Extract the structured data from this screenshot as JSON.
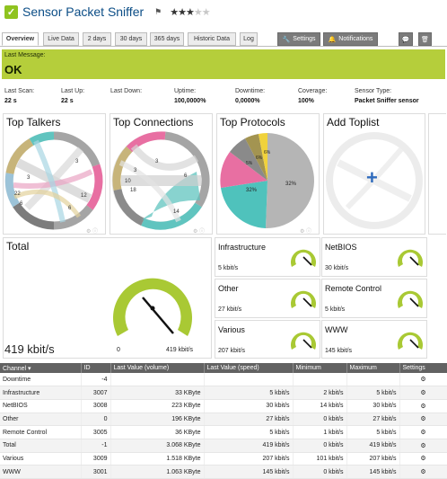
{
  "header": {
    "title": "Sensor Packet Sniffer",
    "flag_icon": "flag-icon",
    "stars": "★★★",
    "stars_off": "★★"
  },
  "tabs": [
    {
      "label": "Overview"
    },
    {
      "label": "Live Data"
    },
    {
      "label": "2 days"
    },
    {
      "label": "30 days"
    },
    {
      "label": "365 days"
    },
    {
      "label": "Historic Data"
    },
    {
      "label": "Log"
    },
    {
      "label": "Settings"
    },
    {
      "label": "Notifications"
    }
  ],
  "banner": {
    "label": "Last Message:",
    "value": "OK"
  },
  "stats": [
    {
      "k": "Last Scan:",
      "v": "22 s"
    },
    {
      "k": "Last Up:",
      "v": "22 s"
    },
    {
      "k": "Last Down:",
      "v": ""
    },
    {
      "k": "Uptime:",
      "v": "100,0000%"
    },
    {
      "k": "Downtime:",
      "v": "0,0000%"
    },
    {
      "k": "Coverage:",
      "v": "100%"
    },
    {
      "k": "Sensor Type:",
      "v": "Packet Sniffer sensor"
    }
  ],
  "panels": {
    "talkers": "Top Talkers",
    "connections": "Top Connections",
    "protocols": "Top Protocols",
    "toplist": "Add Toplist",
    "talker_labels": [
      "3",
      "3",
      "22",
      "6",
      "12",
      "6"
    ],
    "connection_labels": [
      "3",
      "3",
      "6",
      "10",
      "18",
      "14"
    ],
    "protocol_labels": [
      "32%",
      "32%",
      "5%",
      "6%",
      "6%"
    ]
  },
  "total": {
    "title": "Total",
    "value": "419 kbit/s",
    "min": "0",
    "max": "419 kbit/s",
    "gauge_fraction": 1
  },
  "gauges": [
    {
      "title": "Infrastructure",
      "value": "5 kbit/s",
      "fraction": 1
    },
    {
      "title": "NetBIOS",
      "value": "30 kbit/s",
      "fraction": 1
    },
    {
      "title": "Other",
      "value": "27 kbit/s",
      "fraction": 1
    },
    {
      "title": "Remote Control",
      "value": "5 kbit/s",
      "fraction": 1
    },
    {
      "title": "Various",
      "value": "207 kbit/s",
      "fraction": 1
    },
    {
      "title": "WWW",
      "value": "145 kbit/s",
      "fraction": 1
    }
  ],
  "table": {
    "headers": [
      "Channel",
      "ID",
      "Last Value (volume)",
      "Last Value (speed)",
      "Minimum",
      "Maximum",
      "Settings"
    ],
    "rows": [
      [
        "Downtime",
        "-4",
        "",
        "",
        "",
        "",
        ""
      ],
      [
        "Infrastructure",
        "3007",
        "33 KByte",
        "5 kbit/s",
        "2 kbit/s",
        "5 kbit/s",
        ""
      ],
      [
        "NetBIOS",
        "3008",
        "223 KByte",
        "30 kbit/s",
        "14 kbit/s",
        "30 kbit/s",
        ""
      ],
      [
        "Other",
        "0",
        "196 KByte",
        "27 kbit/s",
        "0 kbit/s",
        "27 kbit/s",
        ""
      ],
      [
        "Remote Control",
        "3005",
        "36 KByte",
        "5 kbit/s",
        "1 kbit/s",
        "5 kbit/s",
        ""
      ],
      [
        "Total",
        "-1",
        "3.068 KByte",
        "419 kbit/s",
        "0 kbit/s",
        "419 kbit/s",
        ""
      ],
      [
        "Various",
        "3009",
        "1.518 KByte",
        "207 kbit/s",
        "101 kbit/s",
        "207 kbit/s",
        ""
      ],
      [
        "WWW",
        "3001",
        "1.063 KByte",
        "145 kbit/s",
        "0 kbit/s",
        "145 kbit/s",
        ""
      ]
    ]
  }
}
